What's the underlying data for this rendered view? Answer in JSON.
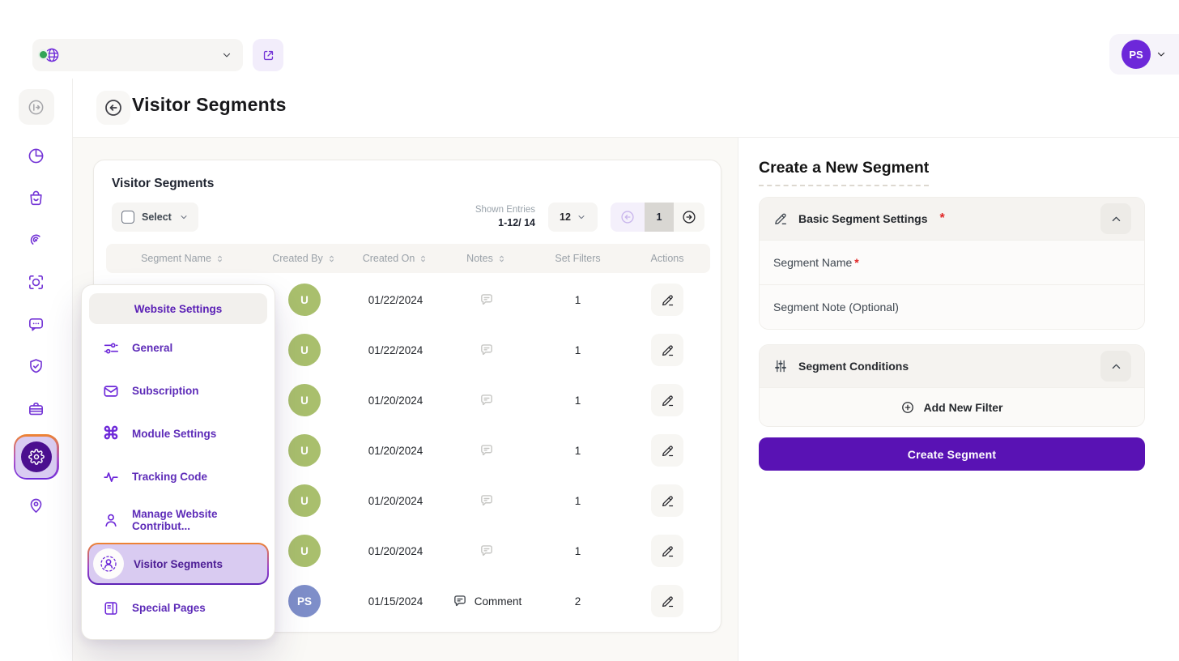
{
  "colors": {
    "primary_purple": "#5912b4",
    "icon_purple": "#6d28d9",
    "highlight_orange": "#ef8430",
    "active_pill_purple": "#d9cbf1",
    "avatar_green": "#a9bf6d",
    "avatar_slate_blue": "#7e8ec9",
    "topbar_avatar_purple": "#6d28d9"
  },
  "topbar": {
    "user_initials": "PS"
  },
  "sidebar": {
    "items": [
      {
        "icon": "panel-collapse-icon",
        "style": "muted"
      },
      {
        "icon": "pie-chart-icon"
      },
      {
        "icon": "shopping-bag-icon"
      },
      {
        "icon": "radar-icon"
      },
      {
        "icon": "focus-scan-icon"
      },
      {
        "icon": "chat-icon"
      },
      {
        "icon": "shield-check-icon"
      },
      {
        "icon": "briefcase-icon"
      },
      {
        "icon": "gear-icon",
        "active": true
      },
      {
        "icon": "map-pin-icon"
      }
    ]
  },
  "page_header": {
    "title": "Visitor Segments"
  },
  "table_card": {
    "title": "Visitor Segments",
    "select_label": "Select",
    "shown_entries_label": "Shown Entries",
    "shown_entries_value": "1-12/ 14",
    "page_size": "12",
    "current_page": "1",
    "columns": [
      {
        "label": "Segment Name",
        "sortable": true
      },
      {
        "label": "Created By",
        "sortable": true
      },
      {
        "label": "Created On",
        "sortable": true
      },
      {
        "label": "Notes",
        "sortable": true
      },
      {
        "label": "Set Filters",
        "sortable": false
      },
      {
        "label": "Actions",
        "sortable": false
      }
    ],
    "rows": [
      {
        "segment_name": "",
        "avatar_text": "U",
        "avatar_color": "#a9bf6d",
        "created_on": "01/22/2024",
        "note_label": "",
        "set_filters": "1"
      },
      {
        "segment_name": "",
        "avatar_text": "U",
        "avatar_color": "#a9bf6d",
        "created_on": "01/22/2024",
        "note_label": "",
        "set_filters": "1"
      },
      {
        "segment_name": "",
        "avatar_text": "U",
        "avatar_color": "#a9bf6d",
        "created_on": "01/20/2024",
        "note_label": "",
        "set_filters": "1"
      },
      {
        "segment_name": "",
        "avatar_text": "U",
        "avatar_color": "#a9bf6d",
        "created_on": "01/20/2024",
        "note_label": "",
        "set_filters": "1"
      },
      {
        "segment_name": "",
        "avatar_text": "U",
        "avatar_color": "#a9bf6d",
        "created_on": "01/20/2024",
        "note_label": "",
        "set_filters": "1"
      },
      {
        "segment_name": "",
        "avatar_text": "U",
        "avatar_color": "#a9bf6d",
        "created_on": "01/20/2024",
        "note_label": "",
        "set_filters": "1"
      },
      {
        "segment_name": "..",
        "avatar_text": "PS",
        "avatar_color": "#7e8ec9",
        "created_on": "01/15/2024",
        "note_label": "Comment",
        "set_filters": "2"
      }
    ]
  },
  "settings_menu": {
    "title": "Website Settings",
    "items": [
      {
        "label": "General",
        "icon": "sliders-icon"
      },
      {
        "label": "Subscription",
        "icon": "mail-icon"
      },
      {
        "label": "Module Settings",
        "icon": "command-icon"
      },
      {
        "label": "Tracking Code",
        "icon": "pulse-icon"
      },
      {
        "label": "Manage Website Contribut...",
        "icon": "user-icon"
      },
      {
        "label": "Visitor Segments",
        "icon": "user-ring-icon",
        "active": true
      },
      {
        "label": "Special Pages",
        "icon": "pages-icon"
      }
    ]
  },
  "create_panel": {
    "title": "Create a New Segment",
    "basic_section": {
      "title": "Basic Segment Settings",
      "required_mark": "*",
      "name_placeholder": "Segment Name",
      "name_required_mark": "*",
      "note_placeholder": "Segment Note (Optional)"
    },
    "conditions_section": {
      "title": "Segment Conditions",
      "add_filter_label": "Add New Filter"
    },
    "submit_label": "Create Segment"
  }
}
